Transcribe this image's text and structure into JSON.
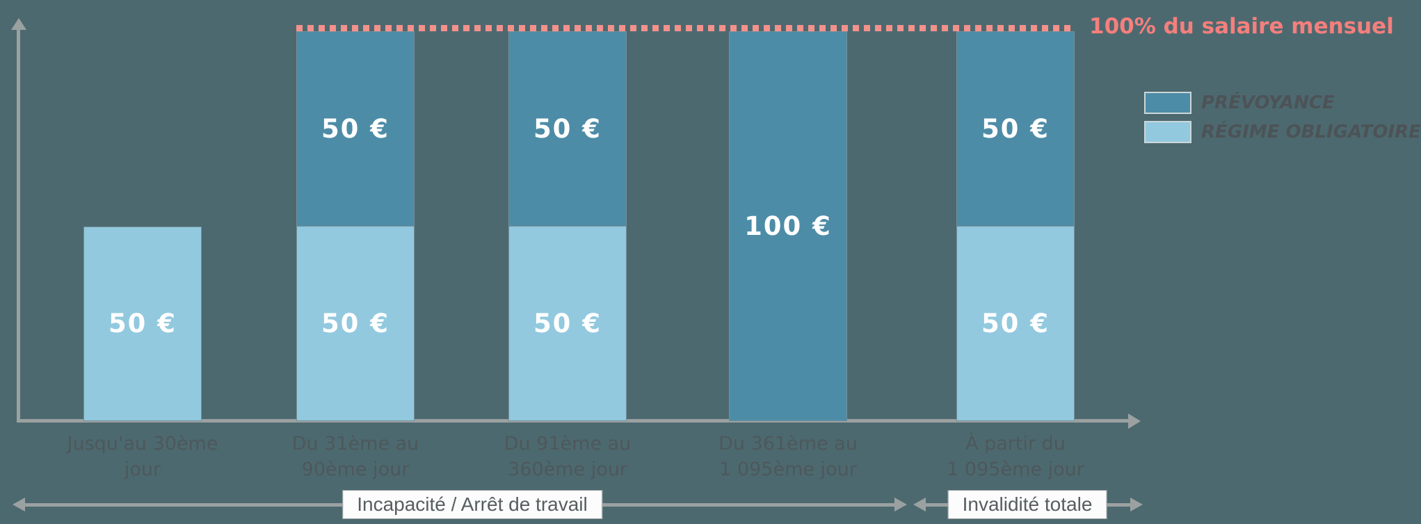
{
  "colors": {
    "background": "#4d6970",
    "prevoyance": "#4d8ca7",
    "regime_obligatoire": "#92c9de",
    "accent_pink": "#f57f7c",
    "axis_gray": "#9ba1a1",
    "category_text": "#4d585a",
    "value_text": "#ffffff"
  },
  "annotation": {
    "max_line_label": "100% du salaire mensuel"
  },
  "legend": {
    "items": [
      {
        "label": "PRÉVOYANCE",
        "color": "#4d8ca7"
      },
      {
        "label": "RÉGIME OBLIGATOIRE",
        "color": "#92c9de"
      }
    ]
  },
  "chart_data": {
    "type": "bar",
    "stacked": true,
    "grid": false,
    "legend_position": "right",
    "ylim": [
      0,
      100
    ],
    "y_reference_line": {
      "value": 100,
      "label": "100% du salaire mensuel",
      "style": "dotted",
      "color": "#f57f7c"
    },
    "categories": [
      "Jusqu'au 30ème jour",
      "Du 31ème au 90ème jour",
      "Du 91ème au 360ème jour",
      "Du 361ème au 1 095ème jour",
      "À partir du 1 095ème jour"
    ],
    "series": [
      {
        "name": "PRÉVOYANCE",
        "color": "#4d8ca7",
        "values": [
          0,
          50,
          50,
          100,
          50
        ]
      },
      {
        "name": "RÉGIME OBLIGATOIRE",
        "color": "#92c9de",
        "values": [
          50,
          50,
          50,
          0,
          50
        ]
      }
    ],
    "bars": [
      {
        "category_line1": "Jusqu'au 30ème",
        "category_line2": "jour",
        "segments": [
          {
            "series": "regime",
            "pct": 50,
            "label": "50 €"
          }
        ]
      },
      {
        "category_line1": "Du 31ème au",
        "category_line2": "90ème jour",
        "segments": [
          {
            "series": "prevoyance",
            "pct": 50,
            "label": "50 €"
          },
          {
            "series": "regime",
            "pct": 50,
            "label": "50 €"
          }
        ]
      },
      {
        "category_line1": "Du 91ème au",
        "category_line2": "360ème jour",
        "segments": [
          {
            "series": "prevoyance",
            "pct": 50,
            "label": "50 €"
          },
          {
            "series": "regime",
            "pct": 50,
            "label": "50 €"
          }
        ]
      },
      {
        "category_line1": "Du 361ème au",
        "category_line2": "1 095ème jour",
        "segments": [
          {
            "series": "prevoyance",
            "pct": 100,
            "label": "100 €"
          }
        ]
      },
      {
        "category_line1": "À partir du",
        "category_line2": "1 095ème jour",
        "segments": [
          {
            "series": "prevoyance",
            "pct": 50,
            "label": "50 €"
          },
          {
            "series": "regime",
            "pct": 50,
            "label": "50 €"
          }
        ]
      }
    ]
  },
  "footer": {
    "range1_label": "Incapacité / Arrêt de travail",
    "range2_label": "Invalidité totale"
  }
}
